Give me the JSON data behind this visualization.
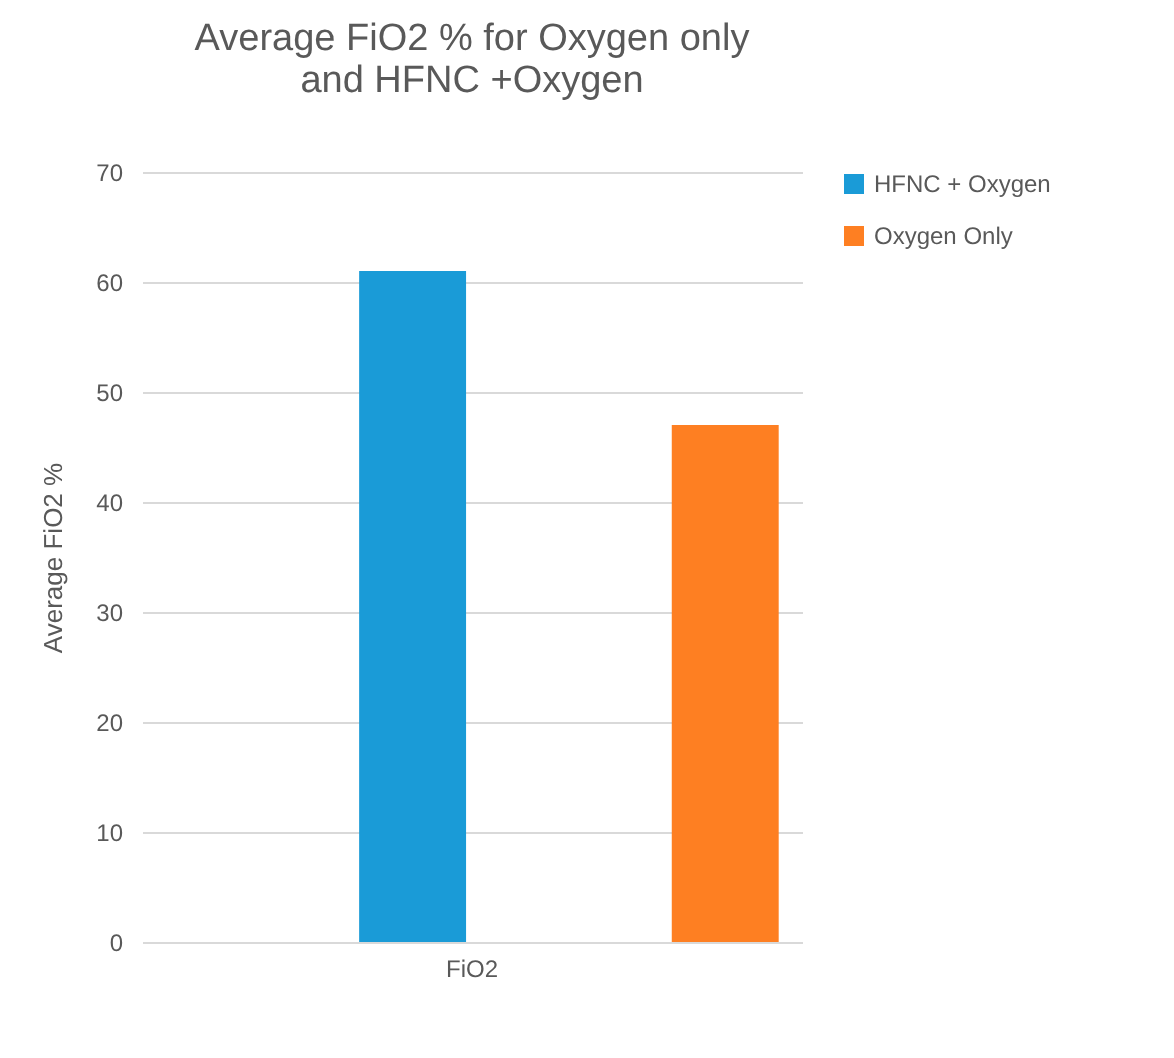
{
  "chart_data": {
    "type": "bar",
    "title": [
      "Average FiO2 % for Oxygen only",
      "and HFNC  +Oxygen"
    ],
    "ylabel": "Average FiO2 %",
    "categories": [
      "FiO2"
    ],
    "series": [
      {
        "name": "HFNC + Oxygen",
        "color": "#1a9bd7",
        "values": [
          61
        ]
      },
      {
        "name": "Oxygen Only",
        "color": "#fe7f22",
        "values": [
          47
        ]
      }
    ],
    "ylim": [
      0,
      70
    ],
    "yticks": [
      0,
      10,
      20,
      30,
      40,
      50,
      60,
      70
    ],
    "grid": "y",
    "legend": "right"
  }
}
